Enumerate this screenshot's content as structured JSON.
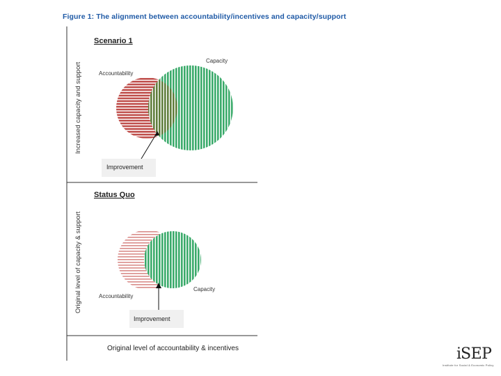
{
  "figure_title": "Figure 1: The alignment between accountability/incentives and capacity/support",
  "y_axis_upper": "Increased capacity and support",
  "y_axis_lower": "Original level of capacity & support",
  "x_axis": "Original level of accountability & incentives",
  "scenario1": {
    "title": "Scenario 1",
    "label_accountability": "Accountability",
    "label_capacity": "Capacity",
    "improvement": "Improvement"
  },
  "status_quo": {
    "title": "Status Quo",
    "label_accountability": "Accountability",
    "label_capacity": "Capacity",
    "improvement": "Improvement"
  },
  "colors": {
    "red": "#c0504d",
    "green": "#3aaa6a",
    "overlap": "#5a7a3a"
  },
  "logo": {
    "brand": "SEP",
    "initial": "i",
    "tagline": "Institute for Social & Economic Policy"
  }
}
